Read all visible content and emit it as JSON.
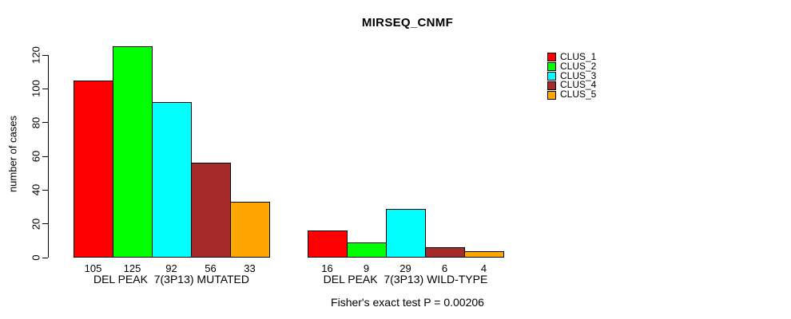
{
  "chart_data": {
    "type": "bar",
    "title": "MIRSEQ_CNMF",
    "ylabel": "number of cases",
    "caption": "Fisher's exact test P = 0.00206",
    "yticks": [
      0,
      20,
      40,
      60,
      80,
      100,
      120
    ],
    "ylim": [
      0,
      125
    ],
    "grid": false,
    "legend_position": "right",
    "categories": [
      "CLUS_1",
      "CLUS_2",
      "CLUS_3",
      "CLUS_4",
      "CLUS_5"
    ],
    "legend": [
      {
        "label": "CLUS_1",
        "color": "#FF0000"
      },
      {
        "label": "CLUS_2",
        "color": "#00FF00"
      },
      {
        "label": "CLUS_3",
        "color": "#00FFFF"
      },
      {
        "label": "CLUS_4",
        "color": "#A52A2A"
      },
      {
        "label": "CLUS_5",
        "color": "#FFA500"
      }
    ],
    "groups": [
      {
        "label": "DEL PEAK  7(3P13) MUTATED",
        "values": [
          105,
          125,
          92,
          56,
          33
        ]
      },
      {
        "label": "DEL PEAK  7(3P13) WILD-TYPE",
        "values": [
          16,
          9,
          29,
          6,
          4
        ]
      }
    ]
  }
}
